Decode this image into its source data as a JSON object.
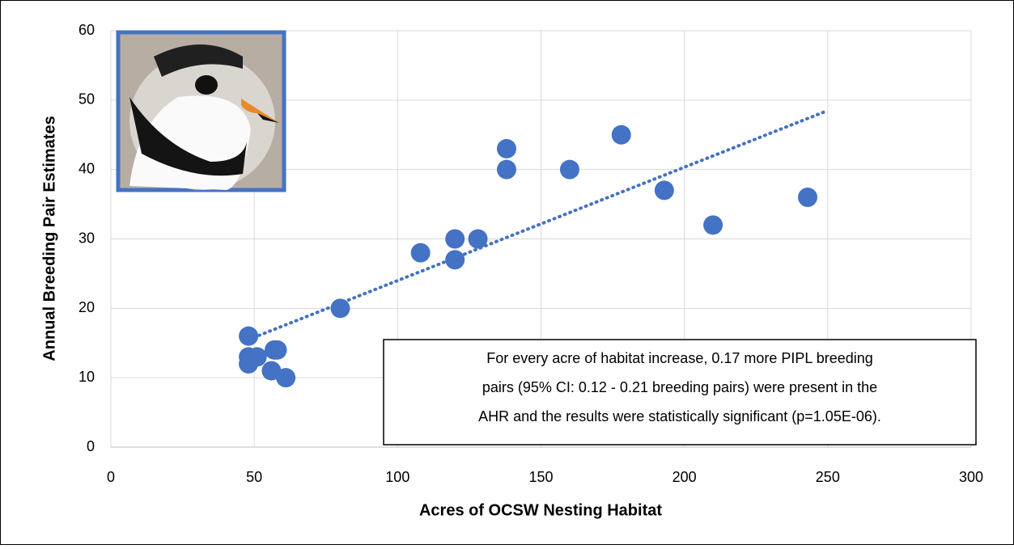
{
  "chart_data": {
    "type": "scatter",
    "x_label": "Acres of OCSW Nesting Habitat",
    "y_label": "Annual Breeding Pair Estimates",
    "series": [
      {
        "color": "#4472c4",
        "x": [
          48,
          48,
          48,
          51,
          57,
          58,
          56,
          61,
          80,
          108,
          120,
          120,
          128,
          138,
          138,
          160,
          178,
          193,
          210,
          243
        ],
        "values": [
          16,
          13,
          12,
          13,
          14,
          14,
          11,
          10,
          20,
          28,
          30,
          27,
          30,
          43,
          40,
          40,
          45,
          37,
          32,
          36
        ]
      }
    ],
    "trendline": {
      "x": [
        48,
        250
      ],
      "values": [
        15.5,
        48.5
      ],
      "color": "#4472c4"
    },
    "xlim": [
      0,
      300
    ],
    "xticks": [
      0,
      50,
      100,
      150,
      200,
      250,
      300
    ],
    "ylim": [
      0,
      60
    ],
    "yticks": [
      0,
      10,
      20,
      30,
      40,
      50,
      60
    ],
    "grid": true,
    "annotation": [
      "For every acre of habitat increase, 0.17 more PIPL breeding",
      "pairs (95% CI: 0.12 - 0.21 breeding pairs) were present in the",
      "AHR and the results were statistically significant (p=1.05E-06)."
    ]
  }
}
